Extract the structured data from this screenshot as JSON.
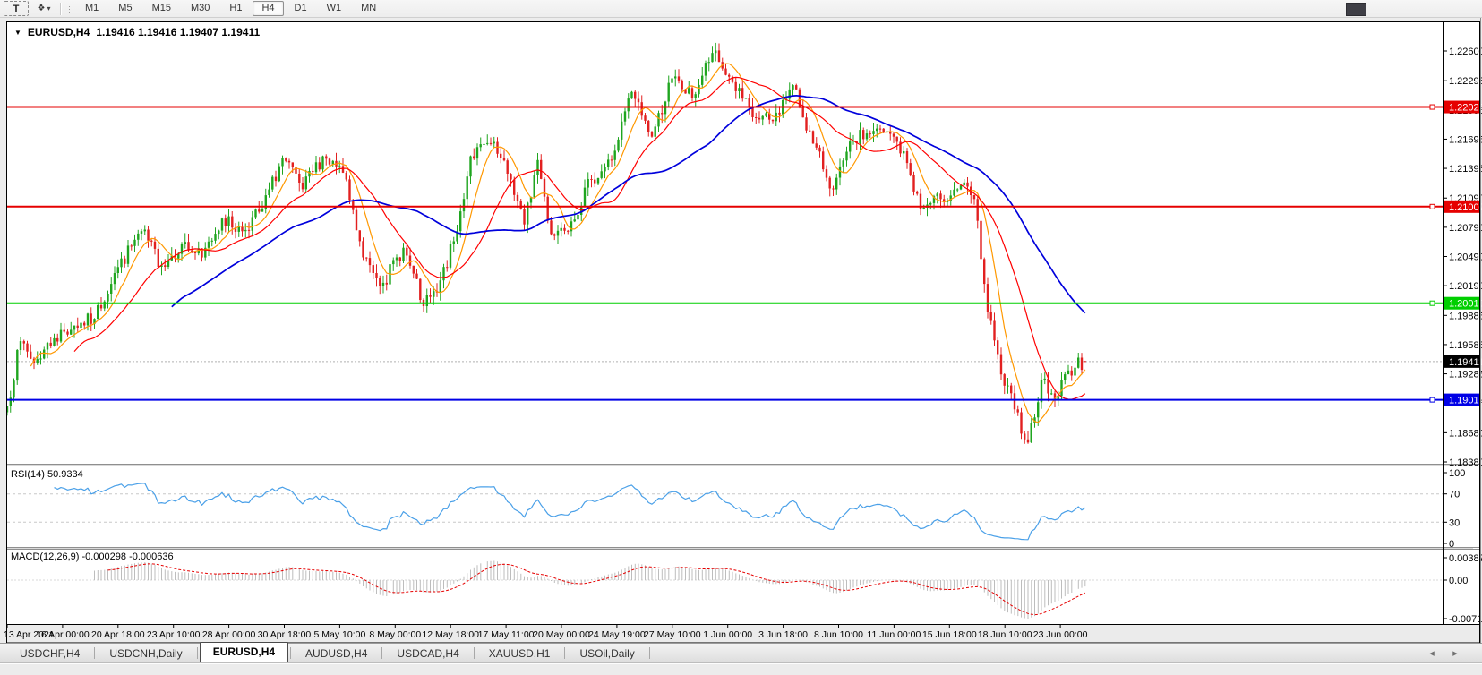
{
  "toolbar": {
    "text_tool_label": "T",
    "timeframes": [
      "M1",
      "M5",
      "M15",
      "M30",
      "H1",
      "H4",
      "D1",
      "W1",
      "MN"
    ],
    "active_timeframe": "H4"
  },
  "chart": {
    "symbol_title": "EURUSD,H4",
    "ohlc_text": "1.19416 1.19416 1.19407 1.19411",
    "price_axis_labels": [
      "1.22600",
      "1.22295",
      "1.21995",
      "1.21695",
      "1.21395",
      "1.21090",
      "1.20790",
      "1.20490",
      "1.20190",
      "1.19885",
      "1.19585",
      "1.19285",
      "1.18985",
      "1.18680",
      "1.18380"
    ],
    "hlines": [
      {
        "label": "1.22025",
        "value": 1.22025,
        "color": "#e60000",
        "text_color": "#ffffff"
      },
      {
        "label": "1.21002",
        "value": 1.21002,
        "color": "#e60000",
        "text_color": "#ffffff"
      },
      {
        "label": "1.20010",
        "value": 1.2001,
        "color": "#00cf00",
        "text_color": "#ffffff"
      },
      {
        "label": "1.19018",
        "value": 1.19018,
        "color": "#0000e6",
        "text_color": "#ffffff"
      }
    ],
    "current_price": {
      "label": "1.19411",
      "value": 1.19411,
      "bg": "#000000",
      "text_color": "#ffffff"
    }
  },
  "rsi": {
    "label": "RSI(14) 50.9334",
    "period": "14",
    "value": "50.9334",
    "axis_labels": [
      {
        "text": "100",
        "value": 100
      },
      {
        "text": "70",
        "value": 70
      },
      {
        "text": "30",
        "value": 30
      },
      {
        "text": "0",
        "value": 0
      }
    ],
    "levels": [
      70,
      30
    ],
    "line_color": "#4aa0e8"
  },
  "macd": {
    "label": "MACD(12,26,9) -0.000298 -0.000636",
    "params": "12,26,9",
    "macd_value": "-0.000298",
    "signal_value": "-0.000636",
    "axis_labels": [
      {
        "text": "0.003873",
        "value": 0.003873
      },
      {
        "text": "0.00",
        "value": 0
      },
      {
        "text": "-0.007195",
        "value": -0.007195
      }
    ],
    "hist_color": "#bdbdbd",
    "signal_color": "#e60000"
  },
  "time_axis_labels": [
    "13 Apr 2021",
    "16 Apr 00:00",
    "20 Apr 18:00",
    "23 Apr 10:00",
    "28 Apr 00:00",
    "30 Apr 18:00",
    "5 May 10:00",
    "8 May 00:00",
    "12 May 18:00",
    "17 May 11:00",
    "20 May 00:00",
    "24 May 19:00",
    "27 May 10:00",
    "1 Jun 00:00",
    "3 Jun 18:00",
    "8 Jun 10:00",
    "11 Jun 00:00",
    "15 Jun 18:00",
    "18 Jun 10:00",
    "23 Jun 00:00"
  ],
  "tabs": {
    "items": [
      "USDCHF,H4",
      "USDCNH,Daily",
      "EURUSD,H4",
      "AUDUSD,H4",
      "USDCAD,H4",
      "XAUUSD,H1",
      "USOil,Daily"
    ],
    "active": "EURUSD,H4"
  },
  "chart_data": {
    "type": "candlestick",
    "symbol": "EURUSD",
    "timeframe": "H4",
    "title": "EURUSD,H4",
    "current_ohlc": {
      "open": 1.19416,
      "high": 1.19416,
      "low": 1.19407,
      "close": 1.19411
    },
    "price_range_view": [
      1.1838,
      1.226
    ],
    "candle_count": 322,
    "close_waypoints": [
      [
        0,
        1.1895
      ],
      [
        4,
        1.1962
      ],
      [
        8,
        1.194
      ],
      [
        14,
        1.1965
      ],
      [
        20,
        1.1978
      ],
      [
        26,
        1.1985
      ],
      [
        32,
        1.2032
      ],
      [
        40,
        1.2075
      ],
      [
        46,
        1.204
      ],
      [
        52,
        1.2062
      ],
      [
        58,
        1.2048
      ],
      [
        64,
        1.2088
      ],
      [
        70,
        1.2075
      ],
      [
        76,
        1.2098
      ],
      [
        82,
        1.215
      ],
      [
        88,
        1.2118
      ],
      [
        94,
        1.2152
      ],
      [
        100,
        1.2135
      ],
      [
        106,
        1.2048
      ],
      [
        112,
        1.2022
      ],
      [
        118,
        1.2058
      ],
      [
        124,
        1.1998
      ],
      [
        128,
        1.2012
      ],
      [
        134,
        1.2075
      ],
      [
        138,
        1.2152
      ],
      [
        144,
        1.2165
      ],
      [
        150,
        1.2128
      ],
      [
        154,
        1.2082
      ],
      [
        158,
        1.2148
      ],
      [
        162,
        1.2072
      ],
      [
        168,
        1.2085
      ],
      [
        174,
        1.2128
      ],
      [
        180,
        1.2148
      ],
      [
        186,
        1.2218
      ],
      [
        192,
        1.2172
      ],
      [
        198,
        1.2232
      ],
      [
        204,
        1.2212
      ],
      [
        210,
        1.2258
      ],
      [
        216,
        1.2228
      ],
      [
        222,
        1.2192
      ],
      [
        228,
        1.2188
      ],
      [
        234,
        1.2225
      ],
      [
        240,
        1.2165
      ],
      [
        246,
        1.2118
      ],
      [
        252,
        1.2168
      ],
      [
        258,
        1.2178
      ],
      [
        264,
        1.2172
      ],
      [
        268,
        1.2145
      ],
      [
        272,
        1.2098
      ],
      [
        278,
        1.2108
      ],
      [
        284,
        1.2122
      ],
      [
        288,
        1.2108
      ],
      [
        292,
        1.1992
      ],
      [
        296,
        1.1928
      ],
      [
        300,
        1.1892
      ],
      [
        304,
        1.1858
      ],
      [
        308,
        1.1922
      ],
      [
        312,
        1.1902
      ],
      [
        316,
        1.1932
      ],
      [
        321,
        1.19411
      ]
    ],
    "up_color": "#1fa51f",
    "down_color": "#e22020",
    "ma_fast": {
      "period": 8,
      "color": "#ff9800"
    },
    "ma_mid": {
      "period": 21,
      "color": "#ff0000"
    },
    "ma_slow": {
      "period": 50,
      "color": "#0000dc"
    },
    "legend_position": "none",
    "grid": false
  }
}
